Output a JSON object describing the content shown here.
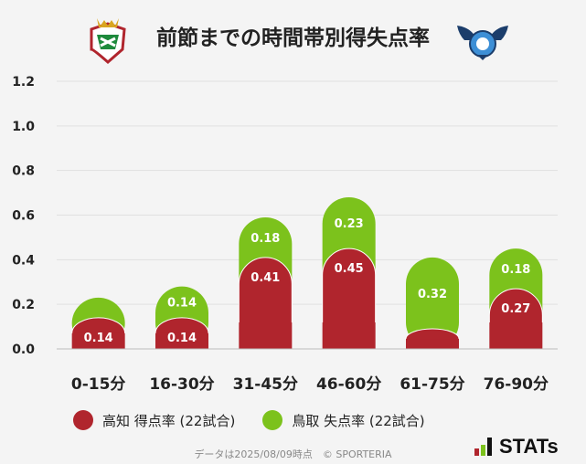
{
  "header": {
    "title": "前節までの時間帯別得失点率",
    "home_logo": "kochi-united-crest-icon",
    "away_logo": "gainare-tottori-crest-icon"
  },
  "chart_data": {
    "type": "bar",
    "stacked": true,
    "categories": [
      "0-15分",
      "16-30分",
      "31-45分",
      "46-60分",
      "61-75分",
      "76-90分"
    ],
    "series": [
      {
        "name": "高知 得点率 (22試合)",
        "color": "#b0252d",
        "values": [
          0.14,
          0.14,
          0.41,
          0.45,
          0.09,
          0.27
        ],
        "labels": [
          "0.14",
          "0.14",
          "0.41",
          "0.45",
          "",
          "0.27"
        ]
      },
      {
        "name": "鳥取 失点率 (22試合)",
        "color": "#7cc21c",
        "values": [
          0.09,
          0.14,
          0.18,
          0.23,
          0.32,
          0.18
        ],
        "labels": [
          "",
          "0.14",
          "0.18",
          "0.23",
          "0.32",
          "0.18"
        ]
      }
    ],
    "y_ticks": [
      "0.0",
      "0.2",
      "0.4",
      "0.6",
      "0.8",
      "1.0",
      "1.2"
    ],
    "ylim": [
      0,
      1.2
    ],
    "grid": true,
    "legend_position": "bottom-left"
  },
  "footer": {
    "note": "データは2025/08/09時点　© SPORTERIA"
  },
  "brand": {
    "name": "STATs",
    "mark_colors": [
      "#b0252d",
      "#7cc21c",
      "#111111"
    ]
  }
}
